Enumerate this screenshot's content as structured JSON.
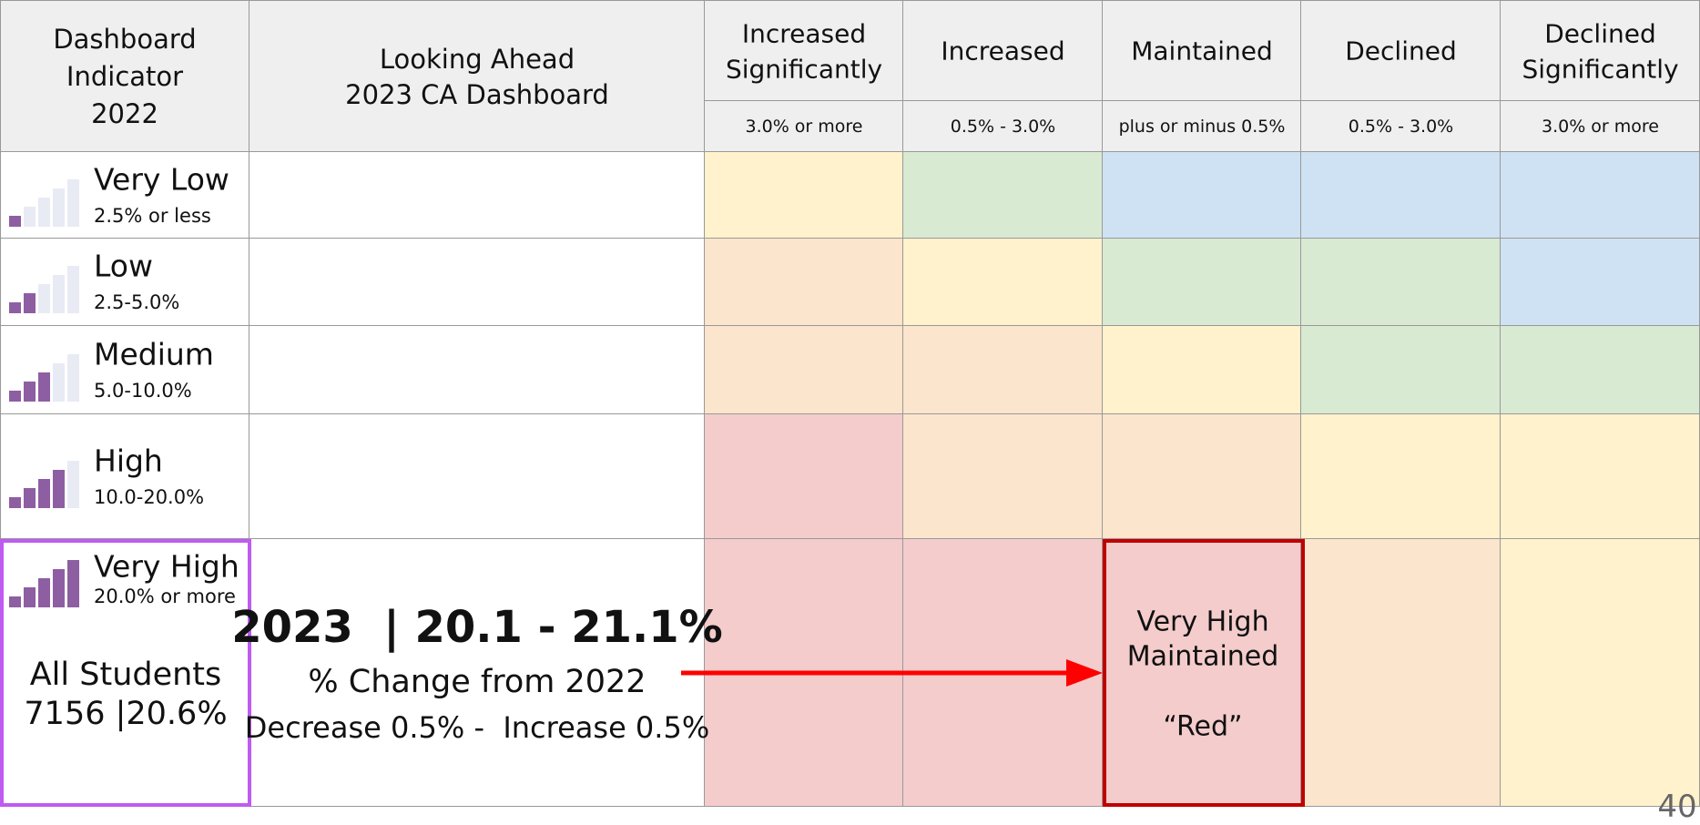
{
  "header": {
    "indicator": [
      "Dashboard",
      "Indicator",
      "2022"
    ],
    "looking_ahead": [
      "Looking Ahead",
      "2023 CA Dashboard"
    ],
    "changes": [
      {
        "label": [
          "Increased",
          "Significantly"
        ],
        "range": "3.0% or more"
      },
      {
        "label": [
          "Increased"
        ],
        "range": "0.5% - 3.0%"
      },
      {
        "label": [
          "Maintained"
        ],
        "range": "plus or minus 0.5%"
      },
      {
        "label": [
          "Declined"
        ],
        "range": "0.5% - 3.0%"
      },
      {
        "label": [
          "Declined",
          "Significantly"
        ],
        "range": "3.0% or more"
      }
    ]
  },
  "rows": [
    {
      "level": "Very Low",
      "range": "2.5% or less",
      "cells": [
        "#fff2cc",
        "#d9ead3",
        "#cfe2f3",
        "#cfe2f3",
        "#cfe2f3"
      ]
    },
    {
      "level": "Low",
      "range": "2.5-5.0%",
      "cells": [
        "#fce5cd",
        "#fff2cc",
        "#d9ead3",
        "#d9ead3",
        "#cfe2f3"
      ]
    },
    {
      "level": "Medium",
      "range": "5.0-10.0%",
      "cells": [
        "#fce5cd",
        "#fce5cd",
        "#fff2cc",
        "#d9ead3",
        "#d9ead3"
      ]
    },
    {
      "level": "High",
      "range": "10.0-20.0%",
      "cells": [
        "#f4cccc",
        "#fce5cd",
        "#fce5cd",
        "#fff2cc",
        "#fff2cc"
      ]
    },
    {
      "level": "Very High",
      "range": "20.0% or more",
      "cells": [
        "#f4cccc",
        "#f4cccc",
        "#f4cccc",
        "#fce5cd",
        "#fff2cc"
      ]
    }
  ],
  "student_group": [
    "All Students",
    "7156 |20.6%"
  ],
  "projection": {
    "headline": "2023  | 20.1 - 21.1%",
    "change_label": "% Change from 2022",
    "change_range": "Decrease 0.5% -  Increase 0.5%"
  },
  "result": {
    "lines": [
      "Very High",
      "Maintained"
    ],
    "color_label": "“Red”"
  },
  "page_number": "40"
}
